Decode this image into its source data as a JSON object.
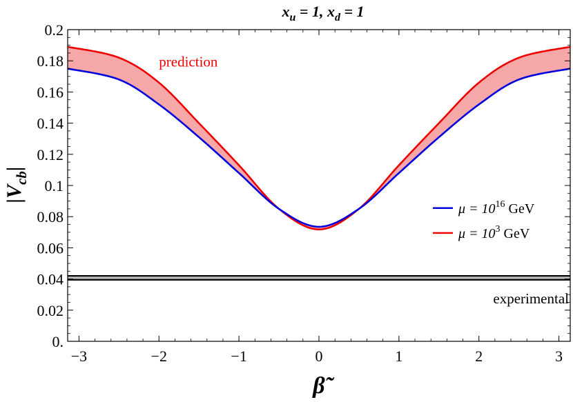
{
  "chart_data": {
    "type": "line",
    "title": "x_u = 1,  x_d = 1",
    "title_parts": {
      "xu_base": "x",
      "xu_sub": "u",
      "xu_val": " = 1, ",
      "xd_base": "x",
      "xd_sub": "d",
      "xd_val": " = 1"
    },
    "xlabel": "β̃",
    "ylabel": "|V_cb|",
    "ylabel_parts": {
      "bar": "|",
      "base": "V",
      "sub": "cb"
    },
    "xlim": [
      -3.14159,
      3.14159
    ],
    "ylim": [
      0,
      0.2
    ],
    "xticks": [
      -3,
      -2,
      -1,
      0,
      1,
      2,
      3
    ],
    "xtick_labels": [
      "−3",
      "−2",
      "−1",
      "0",
      "1",
      "2",
      "3"
    ],
    "yticks": [
      0,
      0.02,
      0.04,
      0.06,
      0.08,
      0.1,
      0.12,
      0.14,
      0.16,
      0.18,
      0.2
    ],
    "ytick_labels": [
      "0.",
      "0.02",
      "0.04",
      "0.06",
      "0.08",
      "0.1",
      "0.12",
      "0.14",
      "0.16",
      "0.18",
      "0.2"
    ],
    "x": [
      -3.14159,
      -2.5,
      -2.0,
      -1.5,
      -1.0,
      -0.5,
      0.0,
      0.5,
      1.0,
      1.5,
      2.0,
      2.5,
      3.14159
    ],
    "series": [
      {
        "name_parts": {
          "pre": "μ = ",
          "base": "10",
          "sup": "16",
          "post": " GeV"
        },
        "color": "#0000dd",
        "values": [
          0.175,
          0.168,
          0.152,
          0.131,
          0.108,
          0.085,
          0.0735,
          0.085,
          0.108,
          0.131,
          0.152,
          0.168,
          0.175
        ]
      },
      {
        "name_parts": {
          "pre": "μ = ",
          "base": "10",
          "sup": "3",
          "post": " GeV"
        },
        "color": "#ee0000",
        "values": [
          0.189,
          0.182,
          0.166,
          0.14,
          0.113,
          0.085,
          0.0718,
          0.085,
          0.113,
          0.14,
          0.166,
          0.182,
          0.189
        ]
      }
    ],
    "band": {
      "fill": "#f6a8a8",
      "between": [
        0,
        1
      ]
    },
    "annotations": [
      {
        "text": "prediction",
        "color": "#ee0000"
      },
      {
        "text": "experimental",
        "color": "#000000"
      }
    ],
    "experimental_band": {
      "low": 0.0395,
      "high": 0.042,
      "fill": "#bbbbbb"
    },
    "legend_position": "right",
    "grid": false
  }
}
